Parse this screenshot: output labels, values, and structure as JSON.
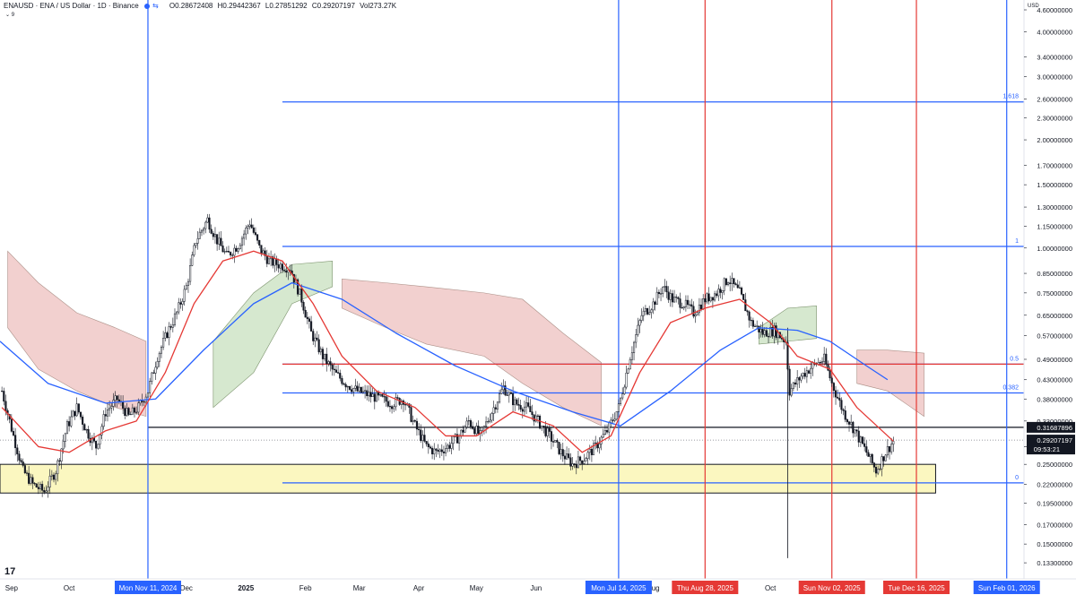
{
  "header": {
    "symbol": "ENAUSD · ENA / US Dollar · 1D · Binance",
    "open": "O0.28672408",
    "high": "H0.29442367",
    "low": "L0.27851292",
    "close": "C0.29207197",
    "volume": "Vol273.27K",
    "indicator_value": "9"
  },
  "currency": "USD",
  "logo_text": "17",
  "colors": {
    "up_candle": "#131722",
    "down_candle": "#131722",
    "ema_fast": "#e53935",
    "ema_slow": "#2962ff",
    "cloud_bear": "#f2d0cf",
    "cloud_bull": "#d6e8cf",
    "support_zone": "#fbf7c0",
    "fib_line": "#2962ff",
    "vertical_red": "#e53935",
    "vertical_blue": "#2962ff"
  },
  "chart_data": {
    "type": "candlestick",
    "y_scale": "log",
    "ylim": [
      0.12,
      4.9
    ],
    "xlim": [
      "2024-08-26",
      "2026-02-10"
    ],
    "y_ticks": [
      "4.60000000",
      "4.00000000",
      "3.40000000",
      "3.00000000",
      "2.60000000",
      "2.30000000",
      "2.00000000",
      "1.70000000",
      "1.50000000",
      "1.30000000",
      "1.15000000",
      "1.00000000",
      "0.85000000",
      "0.75000000",
      "0.65000000",
      "0.57000000",
      "0.49000000",
      "0.43000000",
      "0.38000000",
      "0.33000000",
      "0.28000000",
      "0.25000000",
      "0.22000000",
      "0.19500000",
      "0.17000000",
      "0.15000000",
      "0.13300000"
    ],
    "x_ticks": [
      {
        "date": "2024-09-01",
        "label": "Sep"
      },
      {
        "date": "2024-10-01",
        "label": "Oct"
      },
      {
        "date": "2024-12-01",
        "label": "Dec"
      },
      {
        "date": "2025-01-01",
        "label": "2025"
      },
      {
        "date": "2025-02-01",
        "label": "Feb"
      },
      {
        "date": "2025-03-01",
        "label": "Mar"
      },
      {
        "date": "2025-04-01",
        "label": "Apr"
      },
      {
        "date": "2025-05-01",
        "label": "May"
      },
      {
        "date": "2025-06-01",
        "label": "Jun"
      },
      {
        "date": "2025-08-01",
        "label": "Aug"
      },
      {
        "date": "2025-10-01",
        "label": "Oct"
      }
    ],
    "price_path": [
      [
        "2024-08-27",
        0.4
      ],
      [
        "2024-09-02",
        0.3
      ],
      [
        "2024-09-07",
        0.24
      ],
      [
        "2024-09-12",
        0.22
      ],
      [
        "2024-09-18",
        0.21
      ],
      [
        "2024-09-24",
        0.24
      ],
      [
        "2024-09-30",
        0.32
      ],
      [
        "2024-10-05",
        0.36
      ],
      [
        "2024-10-10",
        0.31
      ],
      [
        "2024-10-15",
        0.28
      ],
      [
        "2024-10-20",
        0.35
      ],
      [
        "2024-10-26",
        0.38
      ],
      [
        "2024-11-01",
        0.34
      ],
      [
        "2024-11-06",
        0.36
      ],
      [
        "2024-11-11",
        0.4
      ],
      [
        "2024-11-16",
        0.5
      ],
      [
        "2024-11-21",
        0.58
      ],
      [
        "2024-11-26",
        0.66
      ],
      [
        "2024-12-01",
        0.78
      ],
      [
        "2024-12-06",
        1.05
      ],
      [
        "2024-12-12",
        1.2
      ],
      [
        "2024-12-17",
        1.05
      ],
      [
        "2024-12-22",
        0.95
      ],
      [
        "2024-12-28",
        1.02
      ],
      [
        "2025-01-03",
        1.18
      ],
      [
        "2025-01-08",
        1.0
      ],
      [
        "2025-01-13",
        0.92
      ],
      [
        "2025-01-18",
        0.9
      ],
      [
        "2025-01-24",
        0.88
      ],
      [
        "2025-01-30",
        0.72
      ],
      [
        "2025-02-04",
        0.58
      ],
      [
        "2025-02-10",
        0.5
      ],
      [
        "2025-02-16",
        0.45
      ],
      [
        "2025-02-22",
        0.42
      ],
      [
        "2025-02-28",
        0.4
      ],
      [
        "2025-03-06",
        0.39
      ],
      [
        "2025-03-12",
        0.38
      ],
      [
        "2025-03-18",
        0.37
      ],
      [
        "2025-03-24",
        0.38
      ],
      [
        "2025-03-30",
        0.32
      ],
      [
        "2025-04-05",
        0.28
      ],
      [
        "2025-04-10",
        0.27
      ],
      [
        "2025-04-16",
        0.28
      ],
      [
        "2025-04-22",
        0.3
      ],
      [
        "2025-04-27",
        0.33
      ],
      [
        "2025-05-03",
        0.3
      ],
      [
        "2025-05-09",
        0.35
      ],
      [
        "2025-05-15",
        0.41
      ],
      [
        "2025-05-21",
        0.37
      ],
      [
        "2025-05-27",
        0.36
      ],
      [
        "2025-06-02",
        0.33
      ],
      [
        "2025-06-08",
        0.3
      ],
      [
        "2025-06-14",
        0.27
      ],
      [
        "2025-06-20",
        0.25
      ],
      [
        "2025-06-26",
        0.26
      ],
      [
        "2025-07-02",
        0.28
      ],
      [
        "2025-07-08",
        0.31
      ],
      [
        "2025-07-14",
        0.36
      ],
      [
        "2025-07-20",
        0.5
      ],
      [
        "2025-07-26",
        0.65
      ],
      [
        "2025-08-01",
        0.7
      ],
      [
        "2025-08-06",
        0.78
      ],
      [
        "2025-08-11",
        0.72
      ],
      [
        "2025-08-17",
        0.7
      ],
      [
        "2025-08-22",
        0.66
      ],
      [
        "2025-08-28",
        0.72
      ],
      [
        "2025-09-03",
        0.75
      ],
      [
        "2025-09-09",
        0.82
      ],
      [
        "2025-09-15",
        0.75
      ],
      [
        "2025-09-21",
        0.62
      ],
      [
        "2025-09-27",
        0.58
      ],
      [
        "2025-10-03",
        0.59
      ],
      [
        "2025-10-09",
        0.55
      ],
      [
        "2025-10-11",
        0.4
      ],
      [
        "2025-10-17",
        0.44
      ],
      [
        "2025-10-23",
        0.47
      ],
      [
        "2025-10-29",
        0.49
      ],
      [
        "2025-11-02",
        0.42
      ],
      [
        "2025-11-08",
        0.35
      ],
      [
        "2025-11-14",
        0.31
      ],
      [
        "2025-11-20",
        0.27
      ],
      [
        "2025-11-25",
        0.24
      ],
      [
        "2025-11-30",
        0.27
      ],
      [
        "2025-12-04",
        0.29
      ]
    ],
    "ema_fast": [
      [
        "2024-08-27",
        0.36
      ],
      [
        "2024-09-15",
        0.28
      ],
      [
        "2024-10-01",
        0.27
      ],
      [
        "2024-10-20",
        0.31
      ],
      [
        "2024-11-05",
        0.33
      ],
      [
        "2024-11-20",
        0.45
      ],
      [
        "2024-12-05",
        0.7
      ],
      [
        "2024-12-20",
        0.92
      ],
      [
        "2025-01-05",
        0.98
      ],
      [
        "2025-01-20",
        0.92
      ],
      [
        "2025-02-05",
        0.7
      ],
      [
        "2025-02-20",
        0.5
      ],
      [
        "2025-03-10",
        0.4
      ],
      [
        "2025-03-30",
        0.36
      ],
      [
        "2025-04-15",
        0.3
      ],
      [
        "2025-05-01",
        0.3
      ],
      [
        "2025-05-20",
        0.35
      ],
      [
        "2025-06-10",
        0.32
      ],
      [
        "2025-06-25",
        0.27
      ],
      [
        "2025-07-10",
        0.3
      ],
      [
        "2025-07-25",
        0.45
      ],
      [
        "2025-08-10",
        0.62
      ],
      [
        "2025-08-28",
        0.68
      ],
      [
        "2025-09-15",
        0.72
      ],
      [
        "2025-10-01",
        0.62
      ],
      [
        "2025-10-15",
        0.5
      ],
      [
        "2025-11-01",
        0.46
      ],
      [
        "2025-11-15",
        0.36
      ],
      [
        "2025-12-04",
        0.29
      ]
    ],
    "ema_slow": [
      [
        "2024-08-26",
        0.55
      ],
      [
        "2024-09-20",
        0.42
      ],
      [
        "2024-10-20",
        0.37
      ],
      [
        "2024-11-15",
        0.38
      ],
      [
        "2024-12-10",
        0.52
      ],
      [
        "2025-01-05",
        0.7
      ],
      [
        "2025-01-25",
        0.8
      ],
      [
        "2025-02-20",
        0.72
      ],
      [
        "2025-03-20",
        0.58
      ],
      [
        "2025-04-20",
        0.47
      ],
      [
        "2025-05-20",
        0.4
      ],
      [
        "2025-06-20",
        0.35
      ],
      [
        "2025-07-15",
        0.32
      ],
      [
        "2025-08-10",
        0.4
      ],
      [
        "2025-09-05",
        0.52
      ],
      [
        "2025-09-25",
        0.6
      ],
      [
        "2025-10-15",
        0.59
      ],
      [
        "2025-11-01",
        0.55
      ],
      [
        "2025-11-20",
        0.47
      ],
      [
        "2025-12-01",
        0.43
      ]
    ],
    "cloud_bear": [
      {
        "upper": [
          [
            "2024-08-30",
            0.98
          ],
          [
            "2024-09-15",
            0.8
          ],
          [
            "2024-10-05",
            0.66
          ],
          [
            "2024-10-25",
            0.6
          ],
          [
            "2024-11-10",
            0.55
          ]
        ],
        "lower": [
          [
            "2024-08-30",
            0.6
          ],
          [
            "2024-09-15",
            0.46
          ],
          [
            "2024-10-05",
            0.4
          ],
          [
            "2024-10-25",
            0.36
          ],
          [
            "2024-11-10",
            0.34
          ]
        ]
      },
      {
        "upper": [
          [
            "2025-02-20",
            0.82
          ],
          [
            "2025-03-15",
            0.8
          ],
          [
            "2025-04-05",
            0.78
          ],
          [
            "2025-05-05",
            0.75
          ],
          [
            "2025-05-25",
            0.72
          ],
          [
            "2025-06-15",
            0.58
          ],
          [
            "2025-07-05",
            0.48
          ]
        ],
        "lower": [
          [
            "2025-02-20",
            0.68
          ],
          [
            "2025-03-15",
            0.6
          ],
          [
            "2025-04-05",
            0.54
          ],
          [
            "2025-05-05",
            0.5
          ],
          [
            "2025-05-25",
            0.42
          ],
          [
            "2025-06-15",
            0.36
          ],
          [
            "2025-07-05",
            0.32
          ]
        ]
      },
      {
        "upper": [
          [
            "2025-11-15",
            0.52
          ],
          [
            "2025-12-01",
            0.52
          ],
          [
            "2025-12-20",
            0.51
          ]
        ],
        "lower": [
          [
            "2025-11-15",
            0.42
          ],
          [
            "2025-12-01",
            0.4
          ],
          [
            "2025-12-20",
            0.34
          ]
        ]
      }
    ],
    "cloud_bull": [
      {
        "upper": [
          [
            "2024-12-15",
            0.55
          ],
          [
            "2025-01-05",
            0.75
          ],
          [
            "2025-01-25",
            0.9
          ],
          [
            "2025-02-15",
            0.92
          ]
        ],
        "lower": [
          [
            "2024-12-15",
            0.36
          ],
          [
            "2025-01-05",
            0.45
          ],
          [
            "2025-01-25",
            0.7
          ],
          [
            "2025-02-15",
            0.78
          ]
        ]
      },
      {
        "upper": [
          [
            "2025-09-25",
            0.6
          ],
          [
            "2025-10-10",
            0.68
          ],
          [
            "2025-10-25",
            0.69
          ]
        ],
        "lower": [
          [
            "2025-09-25",
            0.54
          ],
          [
            "2025-10-10",
            0.55
          ],
          [
            "2025-10-25",
            0.56
          ]
        ]
      }
    ],
    "support_zone": {
      "from": "2024-08-26",
      "to": "2025-12-26",
      "low": 0.208,
      "high": 0.25
    },
    "horizontal_lines": [
      {
        "y": 0.31687896,
        "color": "black",
        "from": "2024-11-11",
        "to": "2026-02-10"
      },
      {
        "y": 0.475,
        "color": "red",
        "from": "2025-01-20",
        "to": "2026-02-10"
      }
    ],
    "fib_levels": [
      {
        "level": "1.618",
        "y": 2.55
      },
      {
        "level": "1",
        "y": 1.01
      },
      {
        "level": "0.5",
        "y": 0.475
      },
      {
        "level": "0.382",
        "y": 0.395
      },
      {
        "level": "0",
        "y": 0.222
      }
    ],
    "fib_range": {
      "from": "2025-01-20",
      "to": "2026-02-10"
    },
    "vertical_lines": [
      {
        "date": "2024-11-11",
        "label": "Mon Nov 11, 2024",
        "color": "blue"
      },
      {
        "date": "2025-07-14",
        "label": "Mon Jul 14, 2025",
        "color": "blue"
      },
      {
        "date": "2025-08-28",
        "label": "Thu Aug 28, 2025",
        "color": "red"
      },
      {
        "date": "2025-11-02",
        "label": "Sun Nov 02, 2025",
        "color": "red"
      },
      {
        "date": "2025-12-16",
        "label": "Tue Dec 16, 2025",
        "color": "red"
      },
      {
        "date": "2026-02-01",
        "label": "Sun Feb 01, 2026",
        "color": "blue"
      }
    ],
    "price_labels": {
      "level_line": "0.31687896",
      "last_price": "0.29207197",
      "countdown": "09:53:21"
    }
  }
}
